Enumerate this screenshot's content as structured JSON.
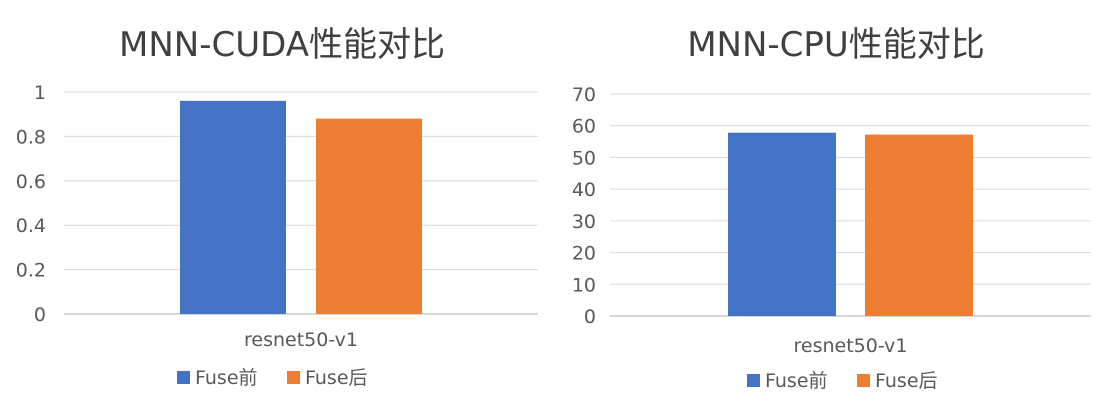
{
  "chart_data": [
    {
      "type": "bar",
      "title": "MNN-CUDA性能对比",
      "categories": [
        "resnet50-v1"
      ],
      "series": [
        {
          "name": "Fuse前",
          "values": [
            0.96
          ],
          "color": "#4472C4"
        },
        {
          "name": "Fuse后",
          "values": [
            0.88
          ],
          "color": "#ED7D31"
        }
      ],
      "ylim": [
        0,
        1
      ],
      "yticks": [
        "0",
        "0.2",
        "0.4",
        "0.6",
        "0.8",
        "1"
      ],
      "ytick_values": [
        0,
        0.2,
        0.4,
        0.6,
        0.8,
        1
      ],
      "grid": true,
      "legend_position": "bottom"
    },
    {
      "type": "bar",
      "title": "MNN-CPU性能对比",
      "categories": [
        "resnet50-v1"
      ],
      "series": [
        {
          "name": "Fuse前",
          "values": [
            57.8
          ],
          "color": "#4472C4"
        },
        {
          "name": "Fuse后",
          "values": [
            57.2
          ],
          "color": "#ED7D31"
        }
      ],
      "ylim": [
        0,
        70
      ],
      "yticks": [
        "0",
        "10",
        "20",
        "30",
        "40",
        "50",
        "60",
        "70"
      ],
      "ytick_values": [
        0,
        10,
        20,
        30,
        40,
        50,
        60,
        70
      ],
      "grid": true,
      "legend_position": "bottom"
    }
  ]
}
